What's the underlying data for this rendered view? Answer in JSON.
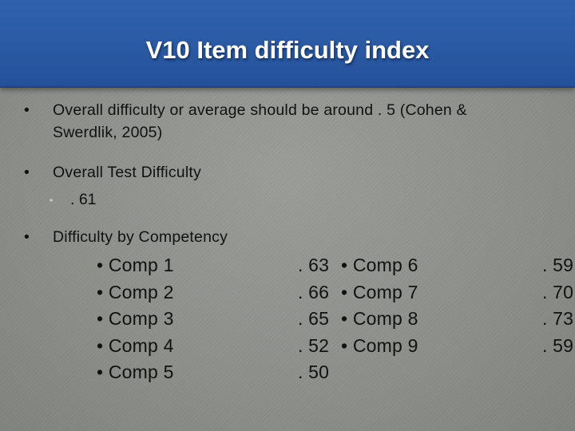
{
  "title": "V10 Item difficulty index",
  "bullets": {
    "b1_marker": "•",
    "b1": "Overall difficulty or average should be around . 5 (Cohen & Swerdlik, 2005)",
    "b2_marker": "•",
    "b2": "Overall Test Difficulty",
    "b2_sub_marker": "•",
    "b2_sub": ". 61",
    "b3_marker": "•",
    "b3": "Difficulty by Competency"
  },
  "competencies_left": {
    "labels": [
      "• Comp 1",
      "• Comp 2",
      "• Comp 3",
      "• Comp 4",
      "• Comp 5"
    ],
    "values": [
      ". 63",
      ". 66",
      ". 65",
      ". 52",
      ". 50"
    ]
  },
  "competencies_right": {
    "labels": [
      "• Comp 6",
      "• Comp 7",
      "• Comp 8",
      "• Comp 9"
    ],
    "values": [
      ". 59",
      ". 70",
      ". 73",
      ". 59"
    ]
  },
  "colors": {
    "title_bar": "#2a5aa3",
    "background": "#8e908c",
    "title_text": "#ffffff",
    "body_text": "#111111"
  }
}
